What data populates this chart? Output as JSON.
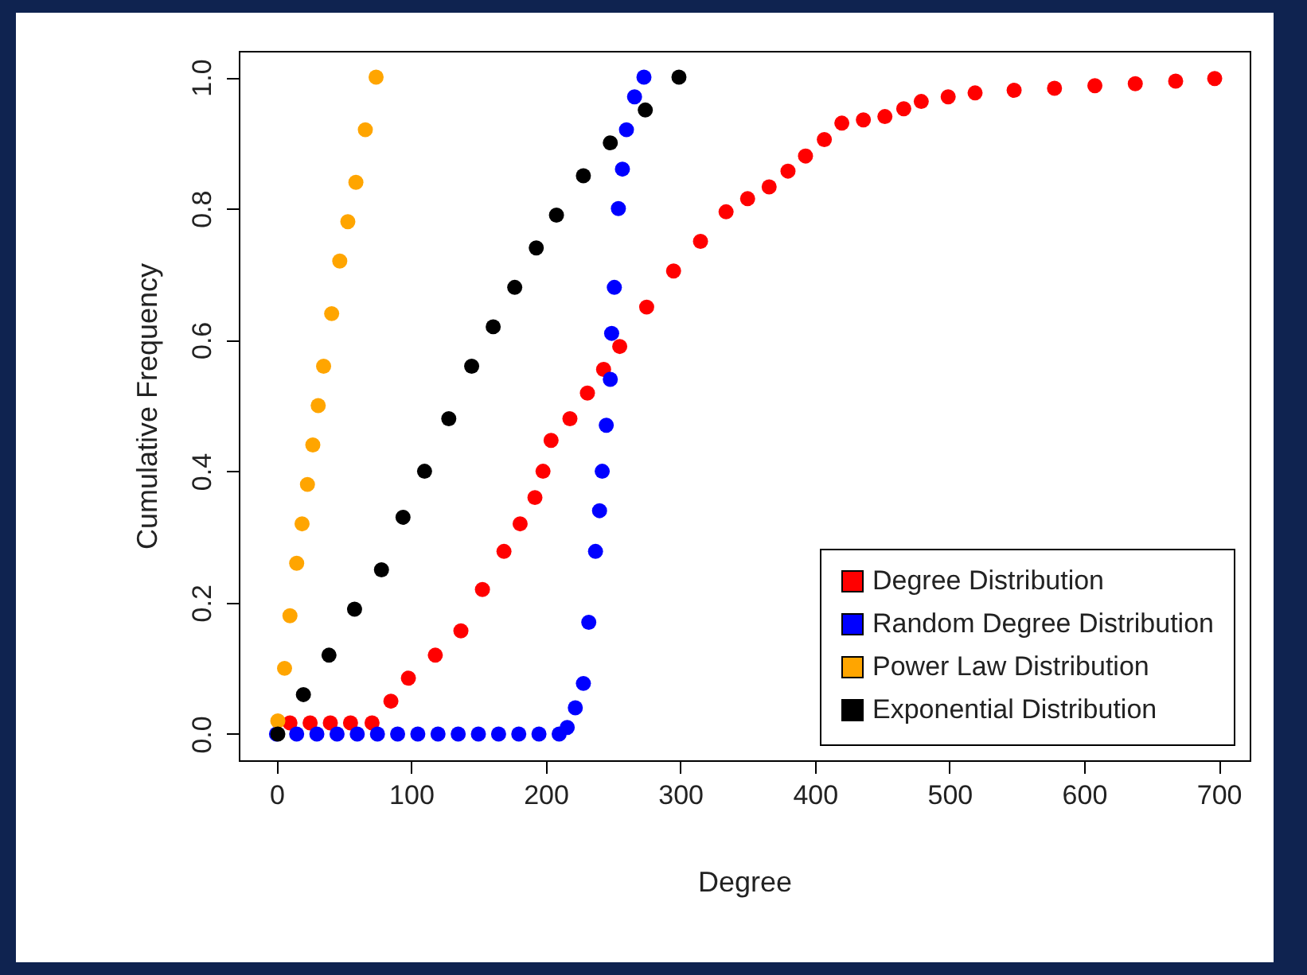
{
  "chart_data": {
    "type": "scatter",
    "xlabel": "Degree",
    "ylabel": "Cumulative Frequency",
    "xlim": [
      -28,
      723
    ],
    "ylim": [
      -0.04,
      1.04
    ],
    "xticks": [
      0,
      100,
      200,
      300,
      400,
      500,
      600,
      700
    ],
    "yticks": [
      {
        "value": 0,
        "label": "0.0"
      },
      {
        "value": 0.2,
        "label": "0.2"
      },
      {
        "value": 0.4,
        "label": "0.4"
      },
      {
        "value": 0.6,
        "label": "0.6"
      },
      {
        "value": 0.8,
        "label": "0.8"
      },
      {
        "value": 1,
        "label": "1.0"
      }
    ],
    "legend": "bottom right",
    "marker": "circle",
    "series": [
      {
        "name": "Degree Distribution",
        "color": "#ff0000",
        "x": [
          10,
          25,
          40,
          55,
          71,
          85,
          98,
          118,
          137,
          153,
          169,
          181,
          192,
          198,
          204,
          218,
          231,
          243,
          255,
          275,
          295,
          315,
          334,
          350,
          366,
          380,
          393,
          407,
          420,
          436,
          452,
          466,
          479,
          499,
          519,
          548,
          578,
          608,
          638,
          668,
          697
        ],
        "values": [
          0.017,
          0.017,
          0.017,
          0.017,
          0.017,
          0.05,
          0.085,
          0.12,
          0.157,
          0.22,
          0.278,
          0.32,
          0.36,
          0.4,
          0.447,
          0.48,
          0.519,
          0.555,
          0.59,
          0.65,
          0.705,
          0.75,
          0.795,
          0.815,
          0.833,
          0.857,
          0.88,
          0.905,
          0.93,
          0.935,
          0.94,
          0.952,
          0.963,
          0.97,
          0.976,
          0.98,
          0.983,
          0.987,
          0.99,
          0.994,
          0.998
        ]
      },
      {
        "name": "Random Degree Distribution",
        "color": "#0000ff",
        "x": [
          0,
          15,
          30,
          45,
          60,
          75,
          90,
          105,
          120,
          135,
          150,
          165,
          180,
          195,
          210,
          216,
          222,
          228,
          232,
          237,
          240,
          242,
          245,
          248,
          249,
          251,
          254,
          257,
          260,
          266,
          273
        ],
        "values": [
          0,
          0,
          0,
          0,
          0,
          0,
          0,
          0,
          0,
          0,
          0,
          0,
          0,
          0,
          0,
          0.01,
          0.04,
          0.077,
          0.17,
          0.278,
          0.34,
          0.4,
          0.47,
          0.54,
          0.61,
          0.68,
          0.8,
          0.86,
          0.92,
          0.97,
          1.0
        ]
      },
      {
        "name": "Power Law Distribution",
        "color": "#ffa500",
        "x": [
          1,
          6,
          10,
          15,
          19,
          23,
          27,
          31,
          35,
          41,
          47,
          53,
          59,
          66,
          74
        ],
        "values": [
          0.02,
          0.1,
          0.18,
          0.26,
          0.32,
          0.38,
          0.44,
          0.5,
          0.56,
          0.64,
          0.72,
          0.78,
          0.84,
          0.92,
          1.0
        ]
      },
      {
        "name": "Exponential Distribution",
        "color": "#000000",
        "x": [
          1,
          20,
          39,
          58,
          78,
          94,
          110,
          128,
          145,
          161,
          177,
          193,
          208,
          228,
          248,
          274,
          299
        ],
        "values": [
          0,
          0.06,
          0.12,
          0.19,
          0.25,
          0.33,
          0.4,
          0.48,
          0.56,
          0.62,
          0.68,
          0.74,
          0.79,
          0.85,
          0.9,
          0.95,
          1.0
        ]
      }
    ]
  }
}
